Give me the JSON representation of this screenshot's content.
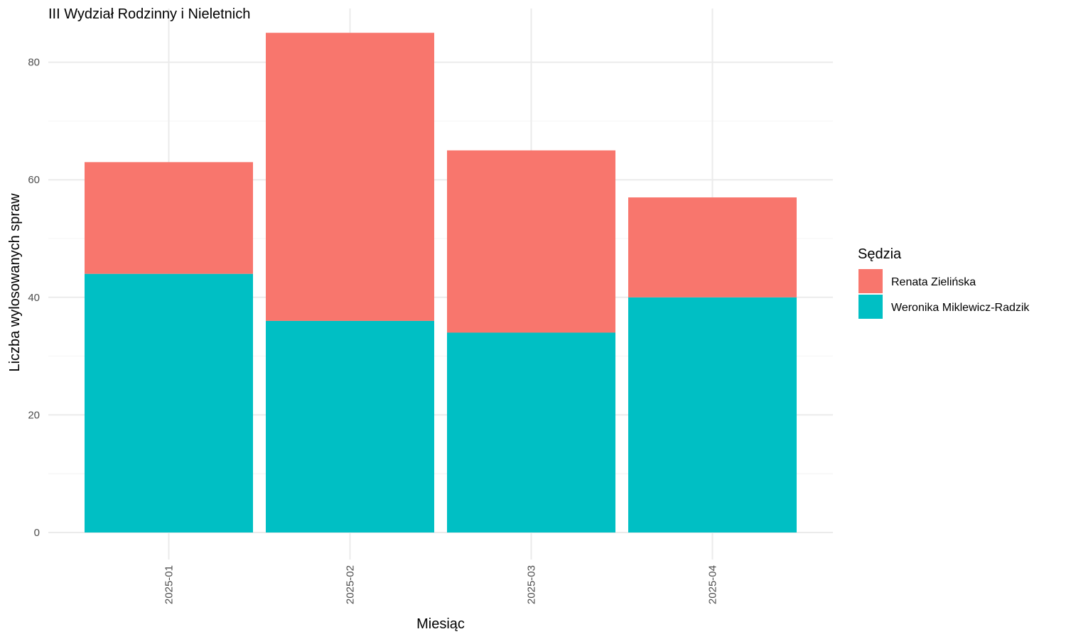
{
  "chart_data": {
    "type": "bar",
    "stacked": true,
    "title": "III Wydział Rodzinny i Nieletnich",
    "xlabel": "Miesiąc",
    "ylabel": "Liczba wylosowanych spraw",
    "categories": [
      "2025-01",
      "2025-02",
      "2025-03",
      "2025-04"
    ],
    "series": [
      {
        "name": "Weronika Miklewicz-Radzik",
        "values": [
          44,
          36,
          34,
          40
        ],
        "color": "#00BFC4"
      },
      {
        "name": "Renata Zielińska",
        "values": [
          19,
          49,
          31,
          17
        ],
        "color": "#F8766D"
      }
    ],
    "ylim": [
      0,
      85
    ],
    "yticks": [
      0,
      20,
      40,
      60,
      80
    ],
    "grid": true,
    "legend": {
      "title": "Sędzia",
      "placement": "right",
      "entries": [
        "Renata Zielińska",
        "Weronika Miklewicz-Radzik"
      ]
    }
  }
}
